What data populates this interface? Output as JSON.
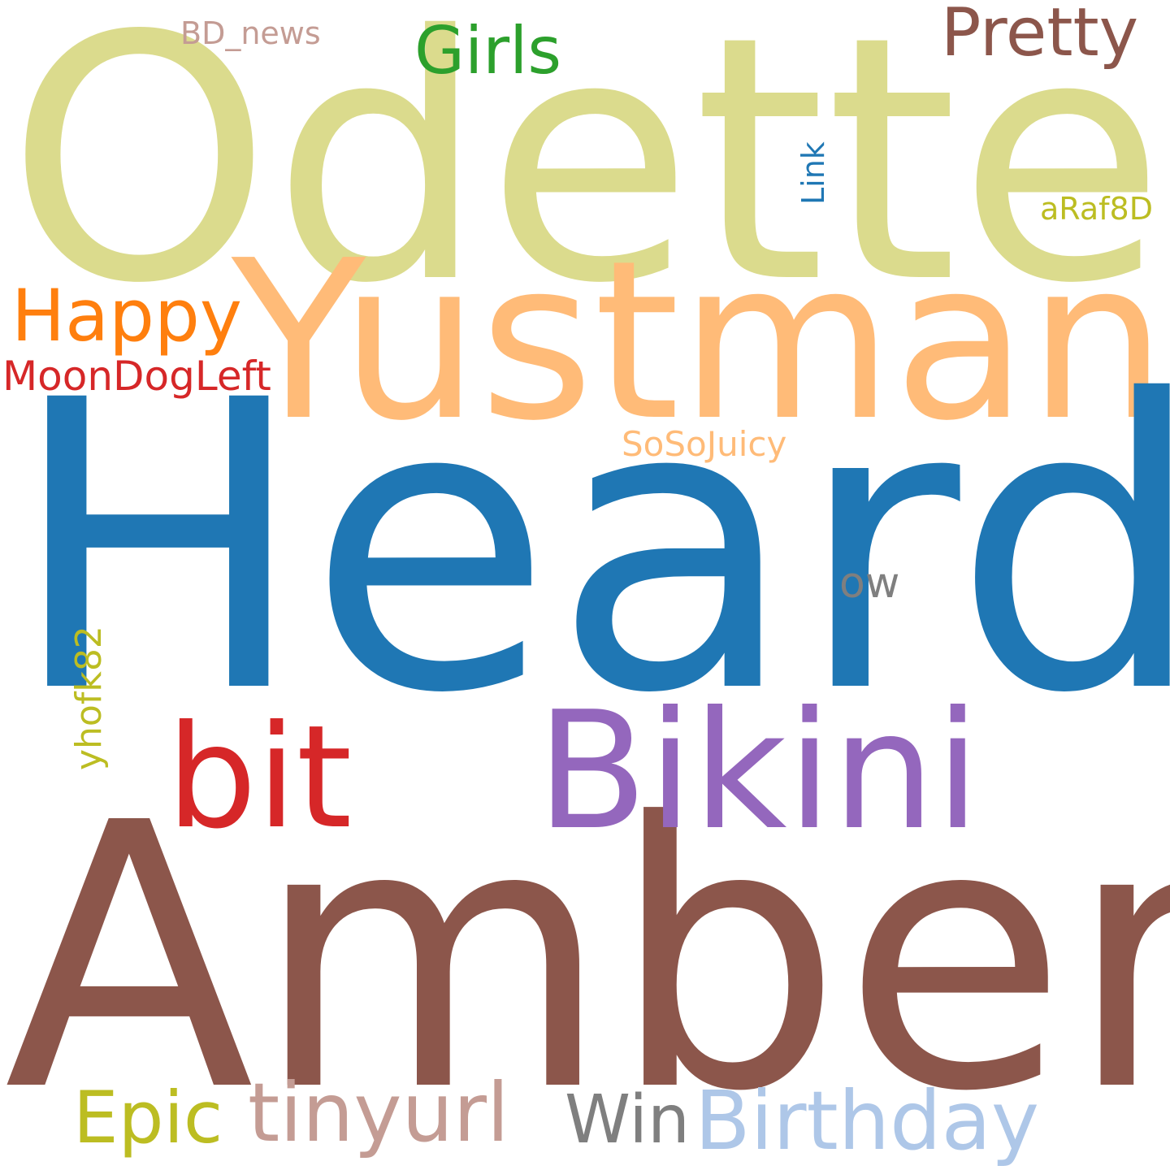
{
  "words": [
    {
      "text": "Odette",
      "color": "#dbdb8d"
    },
    {
      "text": "Yustman",
      "color": "#ffbb78"
    },
    {
      "text": "Heard",
      "color": "#1f77b4"
    },
    {
      "text": "Amber",
      "color": "#8c564b"
    },
    {
      "text": "Bikini",
      "color": "#9467bd"
    },
    {
      "text": "bit",
      "color": "#d62728"
    },
    {
      "text": "Happy",
      "color": "#ff7f0e"
    },
    {
      "text": "MoonDogLeft",
      "color": "#d62728"
    },
    {
      "text": "Girls",
      "color": "#2ca02c"
    },
    {
      "text": "Pretty",
      "color": "#8c564b"
    },
    {
      "text": "BD_news",
      "color": "#c49c94"
    },
    {
      "text": "aRaf8D",
      "color": "#bcbd22"
    },
    {
      "text": "SoSoJuicy",
      "color": "#ffbb78"
    },
    {
      "text": "ow",
      "color": "#7f7f7f"
    },
    {
      "text": "Epic",
      "color": "#bcbd22"
    },
    {
      "text": "tinyurl",
      "color": "#c49c94"
    },
    {
      "text": "Win",
      "color": "#7f7f7f"
    },
    {
      "text": "Birthday",
      "color": "#aec7e8"
    },
    {
      "text": "Link",
      "color": "#1f77b4"
    },
    {
      "text": "yhofk82",
      "color": "#bcbd22"
    }
  ]
}
